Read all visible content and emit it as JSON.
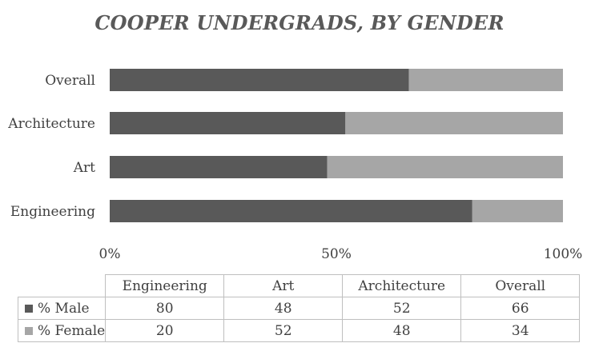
{
  "chart_data": {
    "type": "bar",
    "orientation": "horizontal",
    "stacking": "percent",
    "title": "COOPER UNDERGRADS, BY GENDER",
    "categories": [
      "Engineering",
      "Art",
      "Architecture",
      "Overall"
    ],
    "series": [
      {
        "name": "% Male",
        "values": [
          80,
          48,
          52,
          66
        ],
        "color": "#595959"
      },
      {
        "name": "% Female",
        "values": [
          20,
          52,
          48,
          34
        ],
        "color": "#a6a6a6"
      }
    ],
    "x_ticks": [
      "0%",
      "50%",
      "100%"
    ],
    "xlim": [
      0,
      100
    ],
    "grid": false,
    "legend": "data-table"
  }
}
